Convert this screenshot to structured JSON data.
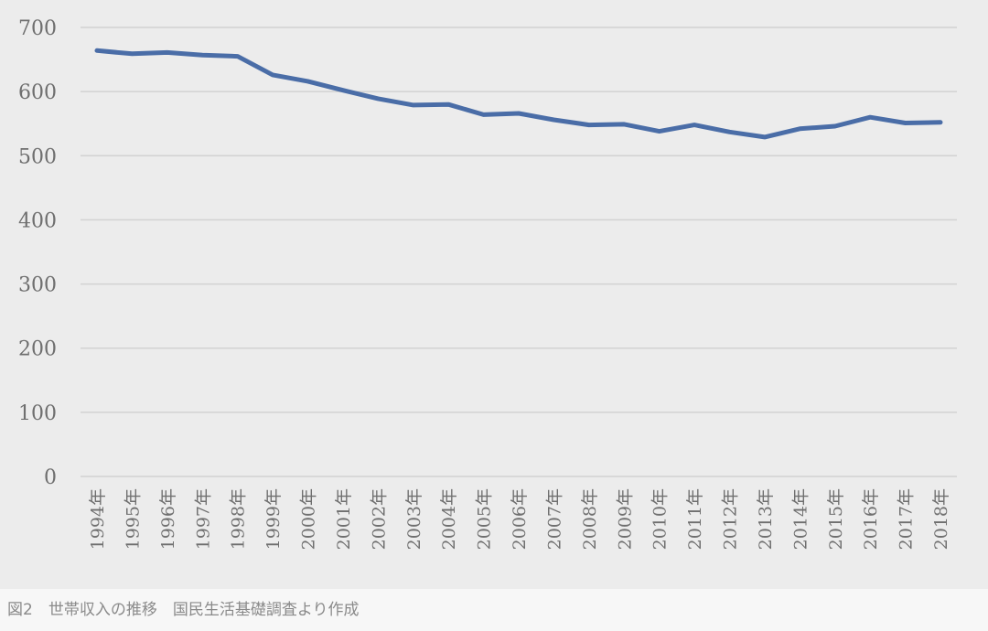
{
  "chart_data": {
    "type": "line",
    "title": "",
    "xlabel": "",
    "ylabel": "",
    "ylim": [
      0,
      700
    ],
    "yticks": [
      0,
      100,
      200,
      300,
      400,
      500,
      600,
      700
    ],
    "grid": true,
    "legend": "none",
    "categories": [
      "1994年",
      "1995年",
      "1996年",
      "1997年",
      "1998年",
      "1999年",
      "2000年",
      "2001年",
      "2002年",
      "2003年",
      "2004年",
      "2005年",
      "2006年",
      "2007年",
      "2008年",
      "2009年",
      "2010年",
      "2011年",
      "2012年",
      "2013年",
      "2014年",
      "2015年",
      "2016年",
      "2017年",
      "2018年"
    ],
    "series": [
      {
        "values": [
          664,
          659,
          661,
          657,
          655,
          626,
          616,
          602,
          589,
          579,
          580,
          564,
          566,
          556,
          548,
          549,
          538,
          548,
          537,
          529,
          542,
          546,
          560,
          551,
          552
        ]
      }
    ],
    "colors": {
      "line": "#4a6da7",
      "grid": "#d2d2d2",
      "tick_text": "#6f6f6f"
    }
  },
  "caption": "図2　世帯収入の推移　国民生活基礎調査より作成"
}
